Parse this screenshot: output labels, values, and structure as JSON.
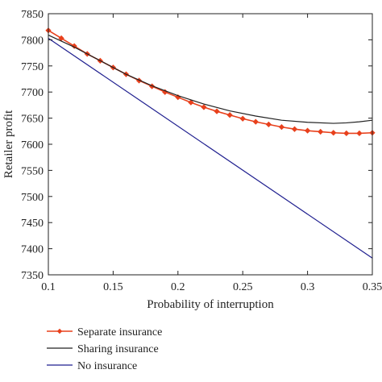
{
  "chart_data": {
    "type": "line",
    "xlabel": "Probability of interruption",
    "ylabel": "Retailer profit",
    "xlim": [
      0.1,
      0.35
    ],
    "ylim": [
      7350,
      7850
    ],
    "xticks": [
      0.1,
      0.15,
      0.2,
      0.25,
      0.3,
      0.35
    ],
    "xtick_labels": [
      "0.1",
      "0.15",
      "0.2",
      "0.25",
      "0.3",
      "0.35"
    ],
    "yticks": [
      7350,
      7400,
      7450,
      7500,
      7550,
      7600,
      7650,
      7700,
      7750,
      7800,
      7850
    ],
    "ytick_labels": [
      "7350",
      "7400",
      "7450",
      "7500",
      "7550",
      "7600",
      "7650",
      "7700",
      "7750",
      "7800",
      "7850"
    ],
    "grid": false,
    "legend_position": "bottom, below the chart",
    "series": [
      {
        "name": "Separate insurance",
        "color": "#e8401c",
        "marker": "diamond",
        "x": [
          0.1,
          0.11,
          0.12,
          0.13,
          0.14,
          0.15,
          0.16,
          0.17,
          0.18,
          0.19,
          0.2,
          0.21,
          0.22,
          0.23,
          0.24,
          0.25,
          0.26,
          0.27,
          0.28,
          0.29,
          0.3,
          0.31,
          0.32,
          0.33,
          0.34,
          0.35
        ],
        "y": [
          7818,
          7803,
          7788,
          7773,
          7760,
          7747,
          7734,
          7722,
          7711,
          7700,
          7690,
          7680,
          7671,
          7663,
          7656,
          7649,
          7643,
          7638,
          7633,
          7629,
          7626,
          7624,
          7622,
          7621,
          7621,
          7622
        ]
      },
      {
        "name": "Sharing insurance",
        "color": "#222222",
        "marker": "none",
        "x": [
          0.1,
          0.12,
          0.14,
          0.16,
          0.18,
          0.2,
          0.22,
          0.24,
          0.26,
          0.28,
          0.3,
          0.32,
          0.33,
          0.34,
          0.35
        ],
        "y": [
          7809,
          7786,
          7760,
          7734,
          7712,
          7693,
          7677,
          7664,
          7654,
          7646,
          7642,
          7640,
          7641,
          7643,
          7646
        ]
      },
      {
        "name": "No insurance",
        "color": "#1f1f8f",
        "marker": "none",
        "x": [
          0.1,
          0.35
        ],
        "y": [
          7803,
          7382
        ]
      }
    ]
  }
}
